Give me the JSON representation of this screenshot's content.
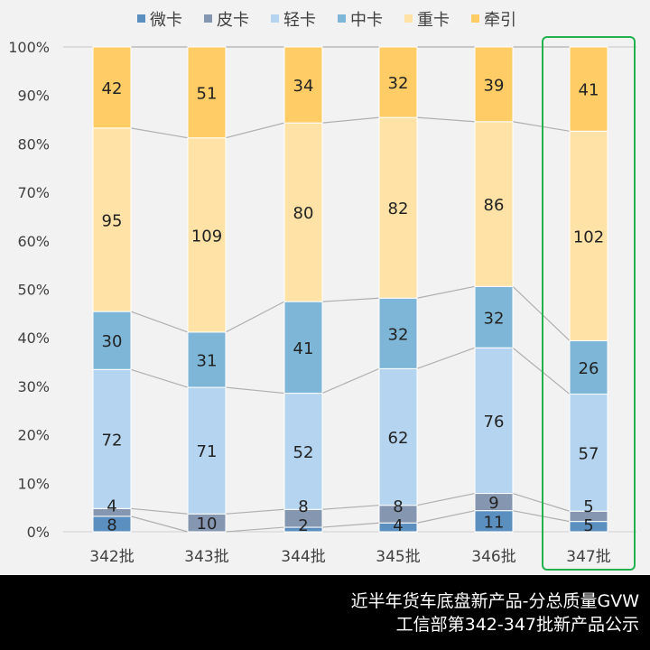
{
  "chart_data": {
    "type": "bar",
    "stacked": "percent",
    "categories": [
      "342批",
      "343批",
      "344批",
      "345批",
      "346批",
      "347批"
    ],
    "series": [
      {
        "name": "微卡",
        "color": "#5b8fbf",
        "values": [
          8,
          0,
          2,
          4,
          11,
          5
        ]
      },
      {
        "name": "皮卡",
        "color": "#8496b0",
        "values": [
          4,
          10,
          8,
          8,
          9,
          5
        ]
      },
      {
        "name": "轻卡",
        "color": "#b4d4ef",
        "values": [
          72,
          71,
          52,
          62,
          76,
          57
        ]
      },
      {
        "name": "中卡",
        "color": "#7db6d6",
        "values": [
          30,
          31,
          41,
          32,
          32,
          26
        ]
      },
      {
        "name": "重卡",
        "color": "#ffe2a6",
        "values": [
          95,
          109,
          80,
          82,
          86,
          102
        ]
      },
      {
        "name": "牵引",
        "color": "#ffcc66",
        "values": [
          42,
          51,
          34,
          32,
          39,
          41
        ]
      }
    ],
    "yticks": [
      "0%",
      "10%",
      "20%",
      "30%",
      "40%",
      "50%",
      "60%",
      "70%",
      "80%",
      "90%",
      "100%"
    ],
    "ylim": [
      0,
      100
    ],
    "legend": "top",
    "highlight": {
      "category": "347批",
      "color": "#22b14c"
    }
  },
  "footer": {
    "line1": "近半年货车底盘新产品-分总质量GVW",
    "line2": "工信部第342-347批新产品公示"
  }
}
